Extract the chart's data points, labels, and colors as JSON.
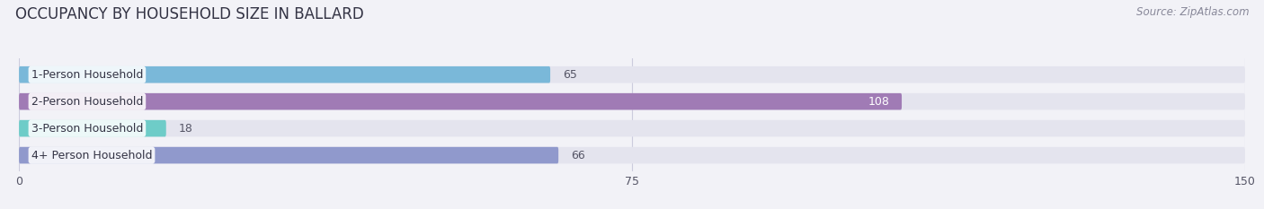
{
  "title": "OCCUPANCY BY HOUSEHOLD SIZE IN BALLARD",
  "source": "Source: ZipAtlas.com",
  "categories": [
    "1-Person Household",
    "2-Person Household",
    "3-Person Household",
    "4+ Person Household"
  ],
  "values": [
    65,
    108,
    18,
    66
  ],
  "bar_colors": [
    "#7ab8d9",
    "#a07bb5",
    "#6eccc8",
    "#9099cc"
  ],
  "xlim": [
    0,
    150
  ],
  "xticks": [
    0,
    75,
    150
  ],
  "bg_color": "#f2f2f7",
  "bar_bg_color": "#e4e4ee",
  "title_fontsize": 12,
  "source_fontsize": 8.5,
  "label_fontsize": 9,
  "value_fontsize": 9,
  "bar_height": 0.62
}
